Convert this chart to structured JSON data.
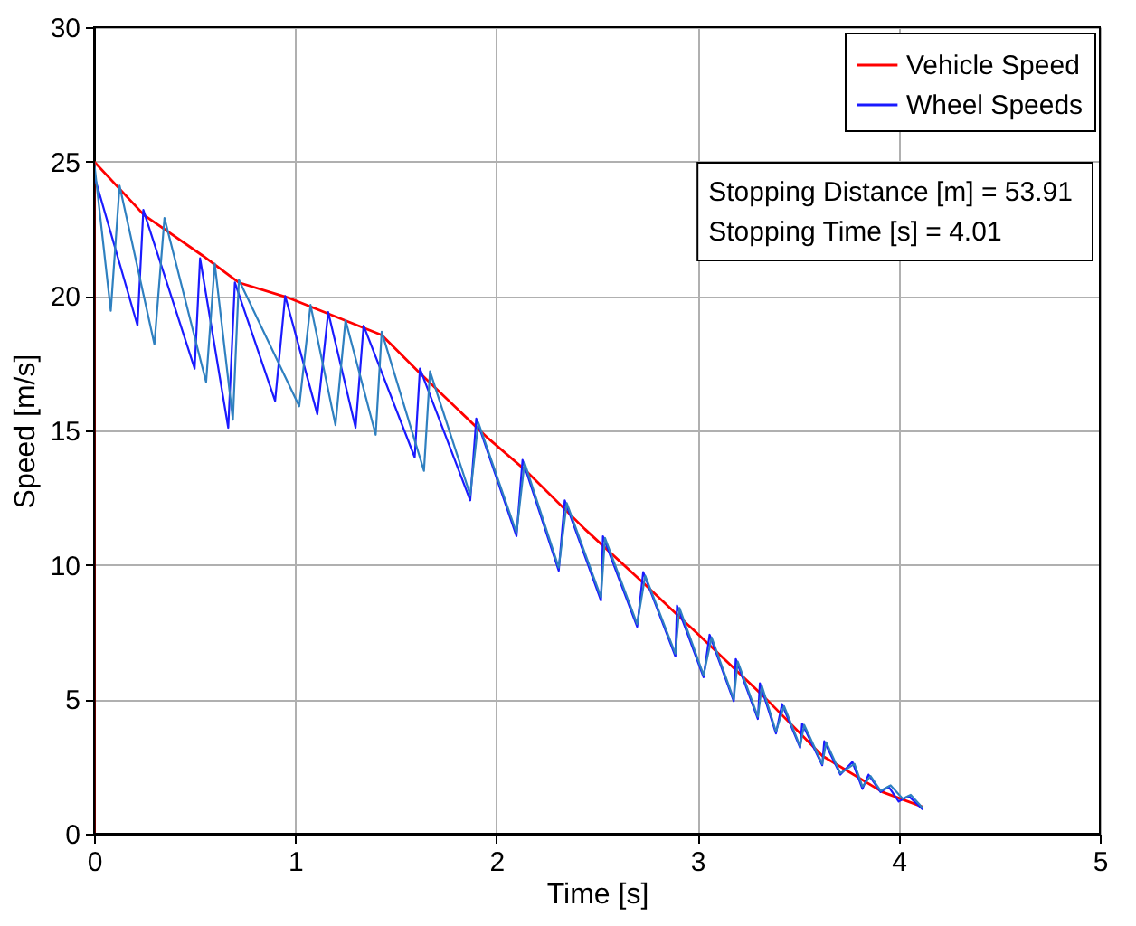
{
  "chart_data": {
    "type": "line",
    "xlabel": "Time [s]",
    "ylabel": "Speed [m/s]",
    "xlim": [
      0,
      5
    ],
    "xticks": [
      0,
      1,
      2,
      3,
      4,
      5
    ],
    "ylim": [
      0,
      30
    ],
    "yticks": [
      0,
      5,
      10,
      15,
      20,
      25,
      30
    ],
    "grid": true,
    "legend": "top right",
    "line_style": "solid",
    "marker": "none",
    "annotations": [
      "Stopping Distance [m] = 53.91",
      "Stopping Time [s] = 4.01"
    ],
    "series": [
      {
        "name": "Vehicle Speed",
        "color": "#ff0000",
        "x": [
          0,
          0,
          0.25,
          0.54,
          0.72,
          0.96,
          1.43,
          1.61,
          1.96,
          2.14,
          2.44,
          2.73,
          3.0,
          3.33,
          3.62,
          3.92,
          4.12
        ],
        "values": [
          0,
          25,
          23.0,
          21.5,
          20.5,
          19.95,
          18.55,
          17.2,
          14.7,
          13.55,
          11.33,
          9.33,
          7.44,
          5.1,
          2.9,
          1.55,
          1.0
        ]
      },
      {
        "name": "Wheel Speeds",
        "color": "#1a1aff",
        "x": [
          0,
          0.216,
          0.245,
          0.5,
          0.527,
          0.667,
          0.7,
          0.9,
          0.95,
          1.11,
          1.164,
          1.3,
          1.34,
          1.594,
          1.62,
          1.87,
          1.9,
          2.1,
          2.13,
          2.31,
          2.34,
          2.52,
          2.53,
          2.7,
          2.73,
          2.89,
          2.898,
          3.03,
          3.06,
          3.18,
          3.19,
          3.3,
          3.31,
          3.39,
          3.42,
          3.51,
          3.52,
          3.62,
          3.63,
          3.71,
          3.77,
          3.82,
          3.85,
          3.91,
          3.95,
          4.0,
          4.05,
          4.12
        ],
        "values": [
          24.5,
          18.9,
          23.2,
          17.3,
          21.4,
          15.1,
          20.5,
          16.1,
          20.0,
          15.6,
          19.4,
          15.1,
          18.9,
          14.0,
          17.3,
          12.4,
          15.44,
          11.07,
          13.9,
          9.78,
          12.4,
          8.67,
          11.06,
          7.7,
          9.73,
          6.6,
          8.49,
          5.82,
          7.4,
          4.93,
          6.5,
          4.27,
          5.6,
          3.73,
          4.82,
          3.2,
          4.1,
          2.55,
          3.44,
          2.2,
          2.67,
          1.67,
          2.2,
          1.55,
          1.75,
          1.2,
          1.4,
          0.9
        ]
      },
      {
        "color": "#2f80c0",
        "x": [
          0,
          0.083,
          0.127,
          0.3,
          0.35,
          0.557,
          0.6,
          0.69,
          0.72,
          1.02,
          1.076,
          1.2,
          1.25,
          1.4,
          1.43,
          1.64,
          1.67,
          1.87,
          1.91,
          2.1,
          2.14,
          2.31,
          2.35,
          2.52,
          2.54,
          2.7,
          2.74,
          2.89,
          2.91,
          3.03,
          3.07,
          3.18,
          3.2,
          3.3,
          3.32,
          3.39,
          3.43,
          3.51,
          3.53,
          3.62,
          3.64,
          3.71,
          3.78,
          3.82,
          3.86,
          3.91,
          3.96,
          4.02,
          4.06,
          4.12
        ],
        "values": [
          25,
          19.45,
          24.1,
          18.2,
          22.9,
          16.8,
          21.2,
          15.4,
          20.6,
          15.9,
          19.67,
          15.2,
          19.1,
          14.84,
          18.67,
          13.5,
          17.2,
          12.6,
          15.3,
          11.2,
          13.8,
          9.9,
          12.3,
          8.8,
          11.0,
          7.8,
          9.6,
          6.7,
          8.4,
          5.9,
          7.3,
          5.0,
          6.4,
          4.35,
          5.5,
          3.8,
          4.75,
          3.25,
          4.05,
          2.6,
          3.4,
          2.25,
          2.6,
          1.75,
          2.15,
          1.6,
          1.8,
          1.3,
          1.45,
          0.95
        ]
      }
    ]
  }
}
